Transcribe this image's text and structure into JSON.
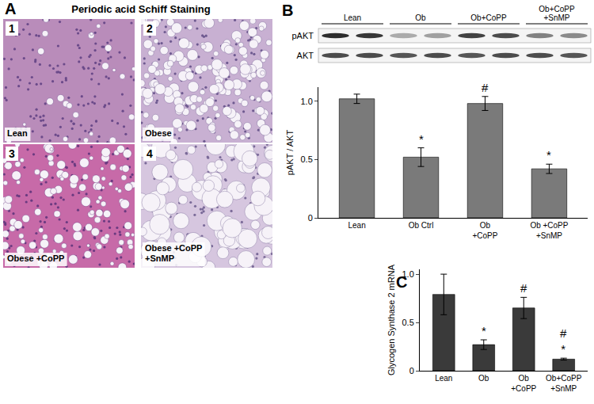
{
  "panel_A": {
    "panel": "A",
    "title": "Periodic acid Schiff Staining",
    "images": [
      {
        "number": "1",
        "caption": "Lean"
      },
      {
        "number": "2",
        "caption": "Obese"
      },
      {
        "number": "3",
        "caption": "Obese +CoPP"
      },
      {
        "number": "4",
        "caption": "Obese +CoPP\n+SnMP"
      }
    ]
  },
  "blot": {
    "groups": [
      "Lean",
      "Ob",
      "Ob+CoPP",
      "Ob+CoPP\n+SnMP"
    ],
    "rows": [
      "pAKT",
      "AKT"
    ]
  },
  "chart_data": [
    {
      "panel": "B",
      "type": "bar",
      "y_label": "pAKT / AKT",
      "categories": [
        "Lean",
        "Ob Ctrl",
        "Ob\n+CoPP",
        "Ob +CoPP\n+SnMP"
      ],
      "values": [
        1.02,
        0.52,
        0.98,
        0.42
      ],
      "errors": [
        0.04,
        0.08,
        0.06,
        0.04
      ],
      "color": "#7a7a7a",
      "ylim": [
        0,
        1.12
      ],
      "yticks": [
        0,
        0.5,
        {
          "value": 1,
          "label": "1.0"
        }
      ],
      "grid": false,
      "annotations": [
        {
          "category": "Ob Ctrl",
          "text": "*"
        },
        {
          "category": "Ob\n+CoPP",
          "text": "#"
        },
        {
          "category": "Ob +CoPP\n+SnMP",
          "text": "*"
        }
      ]
    },
    {
      "panel": "C",
      "type": "bar",
      "y_label": "Glycogen Synthase 2 mRNA",
      "categories": [
        "Lean",
        "Ob",
        "Ob\n+CoPP",
        "Ob+CoPP\n+SnMP"
      ],
      "values": [
        0.79,
        0.27,
        0.65,
        0.12
      ],
      "errors": [
        0.21,
        0.05,
        0.11,
        0.01
      ],
      "color": "#3a3a3a",
      "ylim": [
        0,
        1.05
      ],
      "yticks": [
        0,
        0.5,
        {
          "value": 1,
          "label": "1.0"
        }
      ],
      "grid": false,
      "annotations": [
        {
          "category": "Ob",
          "text": "*"
        },
        {
          "category": "Ob\n+CoPP",
          "text": "#"
        },
        {
          "category": "Ob+CoPP\n+SnMP",
          "text": "#\n*"
        }
      ]
    }
  ]
}
